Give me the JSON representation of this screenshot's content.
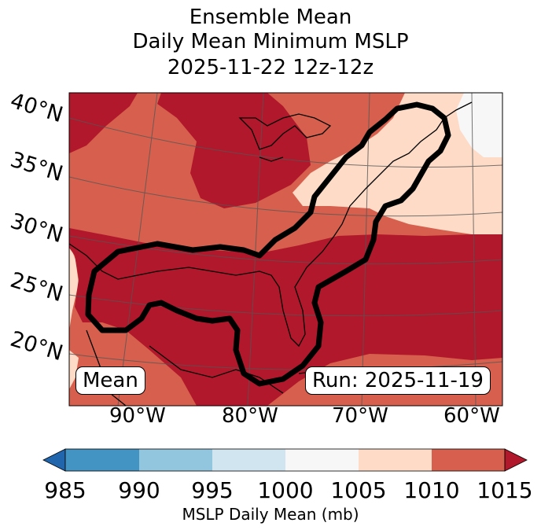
{
  "title": {
    "line1": "Ensemble Mean",
    "line2": "Daily Mean Minimum MSLP",
    "line3": "2025-11-22 12z-12z"
  },
  "map": {
    "lat_labels": [
      "40°N",
      "35°N",
      "30°N",
      "25°N",
      "20°N"
    ],
    "lon_labels": [
      "90°W",
      "80°W",
      "70°W",
      "60°W"
    ],
    "mean_label": "Mean",
    "run_label": "Run: 2025-11-19",
    "field_colors": {
      "below_985": "#2166ac",
      "985_990": "#4393c3",
      "990_995": "#92c5de",
      "995_1000": "#d1e5f0",
      "1000_1005": "#f7f7f7",
      "1005_1010": "#fddbc7",
      "1010_1015": "#d6604d",
      "above_1015": "#b2182b"
    },
    "contour_color": "#000000"
  },
  "colorbar": {
    "ticks": [
      "985",
      "990",
      "995",
      "1000",
      "1005",
      "1010",
      "1015"
    ],
    "label": "MSLP Daily Mean (mb)",
    "colors": [
      "#2166ac",
      "#4393c3",
      "#92c5de",
      "#d1e5f0",
      "#f7f7f7",
      "#fddbc7",
      "#d6604d",
      "#b2182b"
    ]
  }
}
